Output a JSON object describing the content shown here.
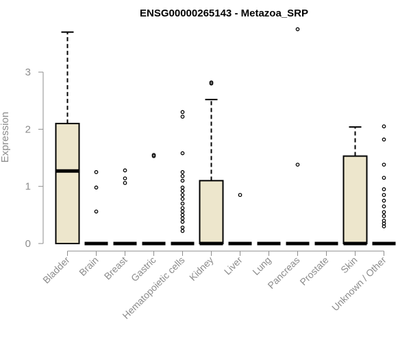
{
  "chart_data": {
    "type": "box",
    "title": "ENSG00000265143 - Metazoa_SRP",
    "xlabel": "",
    "ylabel": "Expression",
    "ylim": [
      0,
      3.8
    ],
    "yticks": [
      0,
      1,
      2,
      3
    ],
    "grid": false,
    "colors": {
      "box_fill": "#ede6cc",
      "stroke": "#000000",
      "axis": "#8c8c8c"
    },
    "categories": [
      "Bladder",
      "Brain",
      "Breast",
      "Gastric",
      "Hematopoietic cells",
      "Kidney",
      "Liver",
      "Lung",
      "Pancreas",
      "Prostate",
      "Skin",
      "Unknown / Other"
    ],
    "boxes": [
      {
        "q1": 0,
        "median": 1.27,
        "q3": 2.1,
        "whisker_low": 0,
        "whisker_high": 3.7,
        "outliers": []
      },
      {
        "q1": 0,
        "median": 0,
        "q3": 0,
        "whisker_low": 0,
        "whisker_high": 0,
        "outliers": [
          0.56,
          0.98,
          1.25
        ]
      },
      {
        "q1": 0,
        "median": 0,
        "q3": 0,
        "whisker_low": 0,
        "whisker_high": 0,
        "outliers": [
          1.06,
          1.14,
          1.28
        ]
      },
      {
        "q1": 0,
        "median": 0,
        "q3": 0,
        "whisker_low": 0,
        "whisker_high": 0,
        "outliers": [
          1.53,
          1.55
        ]
      },
      {
        "q1": 0,
        "median": 0,
        "q3": 0,
        "whisker_low": 0,
        "whisker_high": 0,
        "outliers": [
          0.22,
          0.28,
          0.38,
          0.44,
          0.5,
          0.56,
          0.62,
          0.7,
          0.78,
          0.85,
          0.92,
          0.98,
          1.1,
          1.18,
          1.25,
          1.58,
          2.22,
          2.3
        ]
      },
      {
        "q1": 0,
        "median": 0,
        "q3": 1.1,
        "whisker_low": 0,
        "whisker_high": 2.52,
        "outliers": [
          2.8,
          2.82
        ]
      },
      {
        "q1": 0,
        "median": 0,
        "q3": 0,
        "whisker_low": 0,
        "whisker_high": 0,
        "outliers": [
          0.85
        ]
      },
      {
        "q1": 0,
        "median": 0,
        "q3": 0,
        "whisker_low": 0,
        "whisker_high": 0,
        "outliers": []
      },
      {
        "q1": 0,
        "median": 0,
        "q3": 0,
        "whisker_low": 0,
        "whisker_high": 0,
        "outliers": [
          1.38,
          3.75
        ]
      },
      {
        "q1": 0,
        "median": 0,
        "q3": 0,
        "whisker_low": 0,
        "whisker_high": 0,
        "outliers": []
      },
      {
        "q1": 0,
        "median": 0,
        "q3": 1.53,
        "whisker_low": 0,
        "whisker_high": 2.04,
        "outliers": []
      },
      {
        "q1": 0,
        "median": 0,
        "q3": 0,
        "whisker_low": 0,
        "whisker_high": 0,
        "outliers": [
          0.3,
          0.35,
          0.4,
          0.48,
          0.55,
          0.65,
          0.75,
          0.85,
          0.95,
          1.15,
          1.38,
          1.82,
          2.05
        ]
      }
    ]
  }
}
